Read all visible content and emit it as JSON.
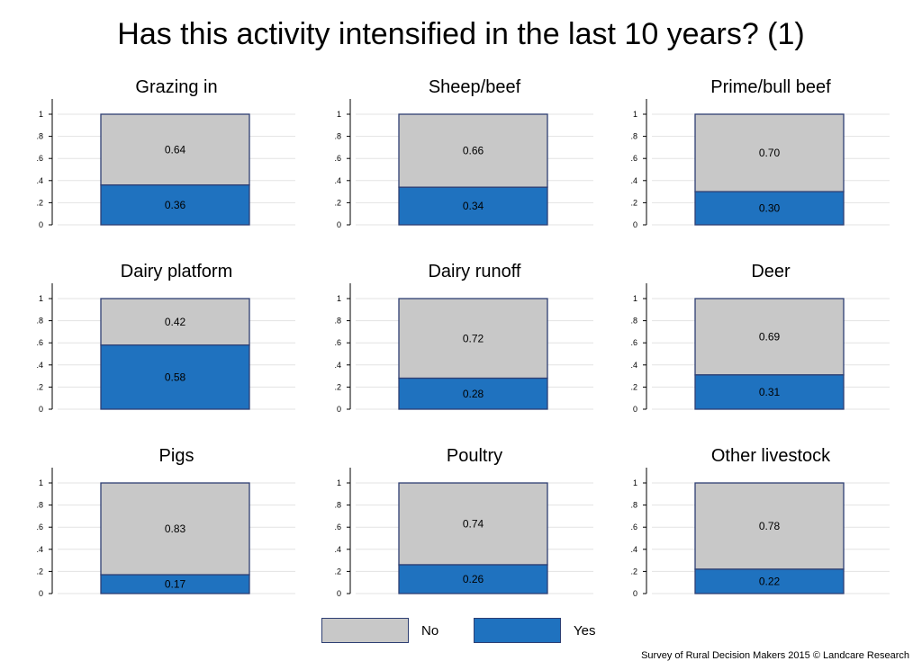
{
  "title": "Has this activity intensified in the last 10 years? (1)",
  "chart_data": {
    "type": "bar",
    "stacked": true,
    "layout": "3x3 small multiples",
    "ylim": [
      0,
      1
    ],
    "yticks": [
      0,
      0.2,
      0.4,
      0.6,
      0.8,
      1
    ],
    "ytick_labels": [
      "0",
      ".2",
      ".4",
      ".6",
      ".8",
      "1"
    ],
    "grid": true,
    "legend_position": "bottom-center",
    "colors": {
      "No": "#c8c8c8",
      "Yes": "#1f72bf",
      "outline": "#2e3f73",
      "grid": "#e3e3e3"
    },
    "panels": [
      {
        "title": "Grazing in",
        "yes": 0.36,
        "no": 0.64,
        "yes_label": "0.36",
        "no_label": "0.64"
      },
      {
        "title": "Sheep/beef",
        "yes": 0.34,
        "no": 0.66,
        "yes_label": "0.34",
        "no_label": "0.66"
      },
      {
        "title": "Prime/bull beef",
        "yes": 0.3,
        "no": 0.7,
        "yes_label": "0.30",
        "no_label": "0.70"
      },
      {
        "title": "Dairy platform",
        "yes": 0.58,
        "no": 0.42,
        "yes_label": "0.58",
        "no_label": "0.42"
      },
      {
        "title": "Dairy runoff",
        "yes": 0.28,
        "no": 0.72,
        "yes_label": "0.28",
        "no_label": "0.72"
      },
      {
        "title": "Deer",
        "yes": 0.31,
        "no": 0.69,
        "yes_label": "0.31",
        "no_label": "0.69"
      },
      {
        "title": "Pigs",
        "yes": 0.17,
        "no": 0.83,
        "yes_label": "0.17",
        "no_label": "0.83"
      },
      {
        "title": "Poultry",
        "yes": 0.26,
        "no": 0.74,
        "yes_label": "0.26",
        "no_label": "0.74"
      },
      {
        "title": "Other livestock",
        "yes": 0.22,
        "no": 0.78,
        "yes_label": "0.22",
        "no_label": "0.78"
      }
    ]
  },
  "legend": {
    "no_label": "No",
    "yes_label": "Yes"
  },
  "credit": "Survey of Rural Decision Makers 2015 © Landcare Research"
}
